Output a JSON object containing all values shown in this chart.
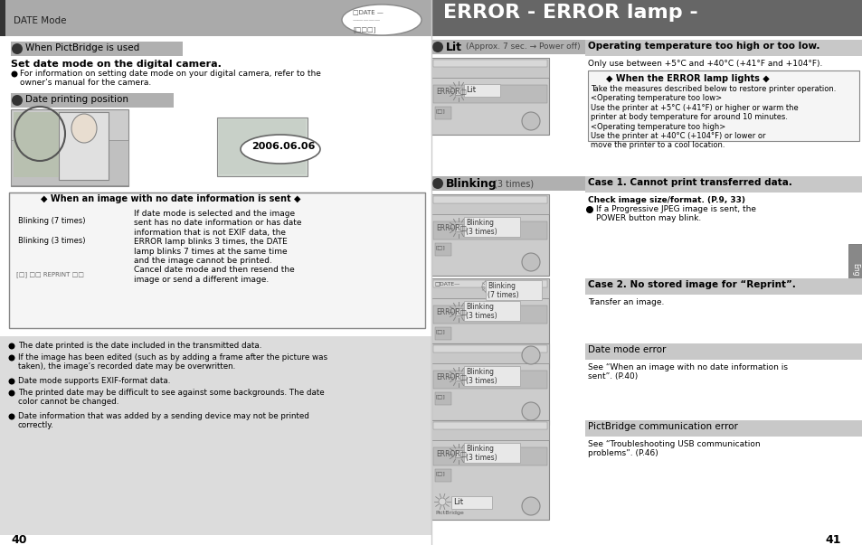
{
  "bg_color": "#ffffff",
  "header_left_bg": "#aaaaaa",
  "header_right_bg": "#666666",
  "header_left_text": "DATE Mode",
  "header_right_text": "ERROR - ERROR lamp -",
  "section_tag_bg": "#b0b0b0",
  "page_left": "40",
  "page_right": "41",
  "bottom_bg": "#e0e0e0",
  "bottom_bullets_left": [
    "The date printed is the date included in the transmitted data.",
    "If the image has been edited (such as by adding a frame after the picture was\ntaken), the image’s recorded date may be overwritten.",
    "Date mode supports EXIF-format data.",
    "The printed date may be difficult to see against some backgrounds. The date\ncolor cannot be changed.",
    "Date information that was added by a sending device may not be printed\ncorrectly."
  ],
  "no_date_box_title": "◆ When an image with no date information is sent ◆",
  "no_date_body": "If date mode is selected and the image\nsent has no date information or has date\ninformation that is not EXIF data, the\nERROR lamp blinks 3 times, the DATE\nlamp blinks 7 times at the same time\nand the image cannot be printed.\nCancel date mode and then resend the\nimage or send a different image.",
  "right_cases": [
    {
      "section_label": "Lit",
      "section_note": "(Approx. 7 sec. → Power off)",
      "header_text": "Operating temperature too high or too low.",
      "desc1": "Only use between +5°C and +40°C (+41°F and +104°F).",
      "sub_box_title": "◆ When the ERROR lamp lights ◆",
      "sub_box_body": "Take the measures described below to restore printer operation.\n<Operating temperature too low>\nUse the printer at +5°C (+41°F) or higher or warm the\nprinter at body temperature for around 10 minutes.\n<Operating temperature too high>\nUse the printer at +40°C (+104°F) or lower or\nmove the printer to a cool location."
    },
    {
      "section_label": "Blinking",
      "section_note": "(3 times)",
      "header_text": "Case 1. Cannot print transferred data.",
      "desc1": "Check image size/format. (P.9, 33)",
      "bullet": "If a Progressive JPEG image is sent, the\nPOWER button may blink."
    },
    {
      "section_label": null,
      "header_text": "Case 2. No stored image for “Reprint”.",
      "desc1": "Transfer an image."
    },
    {
      "section_label": null,
      "header_text": "Date mode error",
      "desc1": "See “When an image with no date information is\nsent”. (P.40)"
    },
    {
      "section_label": null,
      "header_text": "PictBridge communication error",
      "desc1": "See “Troubleshooting USB communication\nproblems”. (P.46)"
    }
  ]
}
